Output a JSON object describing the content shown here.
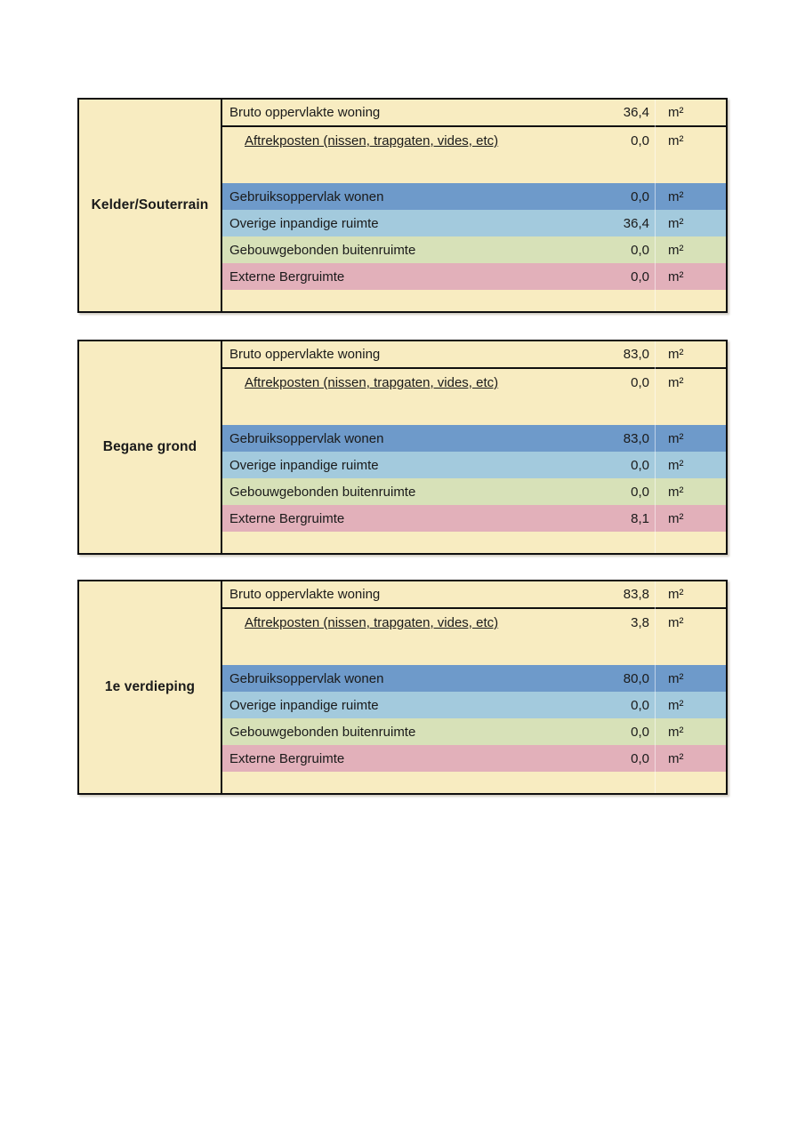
{
  "unit": "m²",
  "colors": {
    "cream": "#f8ecc1",
    "blue": "#6e9aca",
    "light_blue": "#a3cadd",
    "green": "#d7e1b8",
    "pink": "#e2b0ba",
    "border": "#101010",
    "text": "#1a1a1a"
  },
  "row_labels": {
    "bruto": "Bruto oppervlakte woning",
    "aftrek": "Aftrekposten (nissen, trapgaten, vides, etc)",
    "gebruik": "Gebruiksoppervlak wonen",
    "overig": "Overige inpandige ruimte",
    "gebouw": "Gebouwgebonden buitenruimte",
    "extern": "Externe Bergruimte"
  },
  "floors": [
    {
      "name": "Kelder/Souterrain",
      "values": {
        "bruto": "36,4",
        "aftrek": "0,0",
        "gebruik": "0,0",
        "overig": "36,4",
        "gebouw": "0,0",
        "extern": "0,0"
      }
    },
    {
      "name": "Begane grond",
      "values": {
        "bruto": "83,0",
        "aftrek": "0,0",
        "gebruik": "83,0",
        "overig": "0,0",
        "gebouw": "0,0",
        "extern": "8,1"
      }
    },
    {
      "name": "1e verdieping",
      "values": {
        "bruto": "83,8",
        "aftrek": "3,8",
        "gebruik": "80,0",
        "overig": "0,0",
        "gebouw": "0,0",
        "extern": "0,0"
      }
    }
  ]
}
